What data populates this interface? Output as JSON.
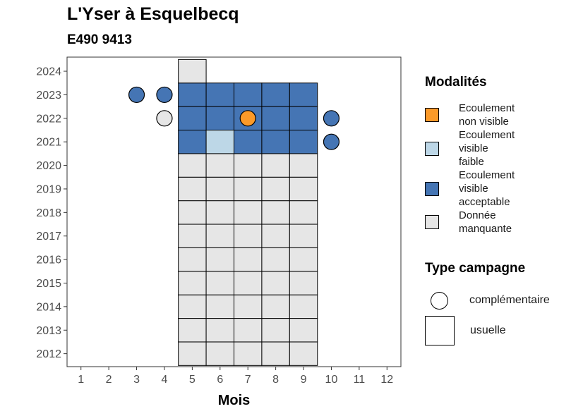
{
  "chart_data": {
    "type": "heatmap",
    "title": "L'Yser à Esquelbecq",
    "subtitle": "E490 9413",
    "xlabel": "Mois",
    "ylabel": "",
    "x_ticks": [
      1,
      2,
      3,
      4,
      5,
      6,
      7,
      8,
      9,
      10,
      11,
      12
    ],
    "y_ticks": [
      2012,
      2013,
      2014,
      2015,
      2016,
      2017,
      2018,
      2019,
      2020,
      2021,
      2022,
      2023,
      2024
    ],
    "xlim": [
      0.5,
      12.5
    ],
    "ylim": [
      2011.45,
      2024.6
    ],
    "colors": {
      "Ecoulement non visible": "#fb9a29",
      "Ecoulement visible faible": "#bdd7e7",
      "Ecoulement visible acceptable": "#4575b4",
      "Donnée manquante": "#e6e6e6"
    },
    "tiles": [
      {
        "year": 2012,
        "month": 5,
        "status": "Donnée manquante"
      },
      {
        "year": 2012,
        "month": 6,
        "status": "Donnée manquante"
      },
      {
        "year": 2012,
        "month": 7,
        "status": "Donnée manquante"
      },
      {
        "year": 2012,
        "month": 8,
        "status": "Donnée manquante"
      },
      {
        "year": 2012,
        "month": 9,
        "status": "Donnée manquante"
      },
      {
        "year": 2013,
        "month": 5,
        "status": "Donnée manquante"
      },
      {
        "year": 2013,
        "month": 6,
        "status": "Donnée manquante"
      },
      {
        "year": 2013,
        "month": 7,
        "status": "Donnée manquante"
      },
      {
        "year": 2013,
        "month": 8,
        "status": "Donnée manquante"
      },
      {
        "year": 2013,
        "month": 9,
        "status": "Donnée manquante"
      },
      {
        "year": 2014,
        "month": 5,
        "status": "Donnée manquante"
      },
      {
        "year": 2014,
        "month": 6,
        "status": "Donnée manquante"
      },
      {
        "year": 2014,
        "month": 7,
        "status": "Donnée manquante"
      },
      {
        "year": 2014,
        "month": 8,
        "status": "Donnée manquante"
      },
      {
        "year": 2014,
        "month": 9,
        "status": "Donnée manquante"
      },
      {
        "year": 2015,
        "month": 5,
        "status": "Donnée manquante"
      },
      {
        "year": 2015,
        "month": 6,
        "status": "Donnée manquante"
      },
      {
        "year": 2015,
        "month": 7,
        "status": "Donnée manquante"
      },
      {
        "year": 2015,
        "month": 8,
        "status": "Donnée manquante"
      },
      {
        "year": 2015,
        "month": 9,
        "status": "Donnée manquante"
      },
      {
        "year": 2016,
        "month": 5,
        "status": "Donnée manquante"
      },
      {
        "year": 2016,
        "month": 6,
        "status": "Donnée manquante"
      },
      {
        "year": 2016,
        "month": 7,
        "status": "Donnée manquante"
      },
      {
        "year": 2016,
        "month": 8,
        "status": "Donnée manquante"
      },
      {
        "year": 2016,
        "month": 9,
        "status": "Donnée manquante"
      },
      {
        "year": 2017,
        "month": 5,
        "status": "Donnée manquante"
      },
      {
        "year": 2017,
        "month": 6,
        "status": "Donnée manquante"
      },
      {
        "year": 2017,
        "month": 7,
        "status": "Donnée manquante"
      },
      {
        "year": 2017,
        "month": 8,
        "status": "Donnée manquante"
      },
      {
        "year": 2017,
        "month": 9,
        "status": "Donnée manquante"
      },
      {
        "year": 2018,
        "month": 5,
        "status": "Donnée manquante"
      },
      {
        "year": 2018,
        "month": 6,
        "status": "Donnée manquante"
      },
      {
        "year": 2018,
        "month": 7,
        "status": "Donnée manquante"
      },
      {
        "year": 2018,
        "month": 8,
        "status": "Donnée manquante"
      },
      {
        "year": 2018,
        "month": 9,
        "status": "Donnée manquante"
      },
      {
        "year": 2019,
        "month": 5,
        "status": "Donnée manquante"
      },
      {
        "year": 2019,
        "month": 6,
        "status": "Donnée manquante"
      },
      {
        "year": 2019,
        "month": 7,
        "status": "Donnée manquante"
      },
      {
        "year": 2019,
        "month": 8,
        "status": "Donnée manquante"
      },
      {
        "year": 2019,
        "month": 9,
        "status": "Donnée manquante"
      },
      {
        "year": 2020,
        "month": 5,
        "status": "Donnée manquante"
      },
      {
        "year": 2020,
        "month": 6,
        "status": "Donnée manquante"
      },
      {
        "year": 2020,
        "month": 7,
        "status": "Donnée manquante"
      },
      {
        "year": 2020,
        "month": 8,
        "status": "Donnée manquante"
      },
      {
        "year": 2020,
        "month": 9,
        "status": "Donnée manquante"
      },
      {
        "year": 2021,
        "month": 5,
        "status": "Ecoulement visible acceptable"
      },
      {
        "year": 2021,
        "month": 6,
        "status": "Ecoulement visible faible"
      },
      {
        "year": 2021,
        "month": 7,
        "status": "Ecoulement visible acceptable"
      },
      {
        "year": 2021,
        "month": 8,
        "status": "Ecoulement visible acceptable"
      },
      {
        "year": 2021,
        "month": 9,
        "status": "Ecoulement visible acceptable"
      },
      {
        "year": 2022,
        "month": 5,
        "status": "Ecoulement visible acceptable"
      },
      {
        "year": 2022,
        "month": 6,
        "status": "Ecoulement visible acceptable"
      },
      {
        "year": 2022,
        "month": 7,
        "status": "Ecoulement visible acceptable"
      },
      {
        "year": 2022,
        "month": 8,
        "status": "Ecoulement visible acceptable"
      },
      {
        "year": 2022,
        "month": 9,
        "status": "Ecoulement visible acceptable"
      },
      {
        "year": 2023,
        "month": 5,
        "status": "Ecoulement visible acceptable"
      },
      {
        "year": 2023,
        "month": 6,
        "status": "Ecoulement visible acceptable"
      },
      {
        "year": 2023,
        "month": 7,
        "status": "Ecoulement visible acceptable"
      },
      {
        "year": 2023,
        "month": 8,
        "status": "Ecoulement visible acceptable"
      },
      {
        "year": 2023,
        "month": 9,
        "status": "Ecoulement visible acceptable"
      },
      {
        "year": 2024,
        "month": 5,
        "status": "Donnée manquante"
      }
    ],
    "points": [
      {
        "year": 2023,
        "month": 3,
        "status": "Ecoulement visible acceptable"
      },
      {
        "year": 2023,
        "month": 4,
        "status": "Ecoulement visible acceptable"
      },
      {
        "year": 2022,
        "month": 4,
        "status": "Donnée manquante"
      },
      {
        "year": 2022,
        "month": 7,
        "status": "Ecoulement non visible"
      },
      {
        "year": 2022,
        "month": 10,
        "status": "Ecoulement visible acceptable"
      },
      {
        "year": 2021,
        "month": 10,
        "status": "Ecoulement visible acceptable"
      }
    ],
    "legend_position": "right"
  },
  "legend": {
    "modalites_title": "Modalités",
    "modalites": [
      {
        "lines": [
          "Ecoulement",
          "non visible"
        ],
        "color": "#fb9a29"
      },
      {
        "lines": [
          "Ecoulement",
          "visible",
          "faible"
        ],
        "color": "#bdd7e7"
      },
      {
        "lines": [
          "Ecoulement",
          "visible",
          "acceptable"
        ],
        "color": "#4575b4"
      },
      {
        "lines": [
          "Donnée",
          "manquante"
        ],
        "color": "#e6e6e6"
      }
    ],
    "campagne_title": "Type campagne",
    "campagne": [
      {
        "label": "complémentaire",
        "shape": "circle"
      },
      {
        "label": "usuelle",
        "shape": "square"
      }
    ]
  }
}
